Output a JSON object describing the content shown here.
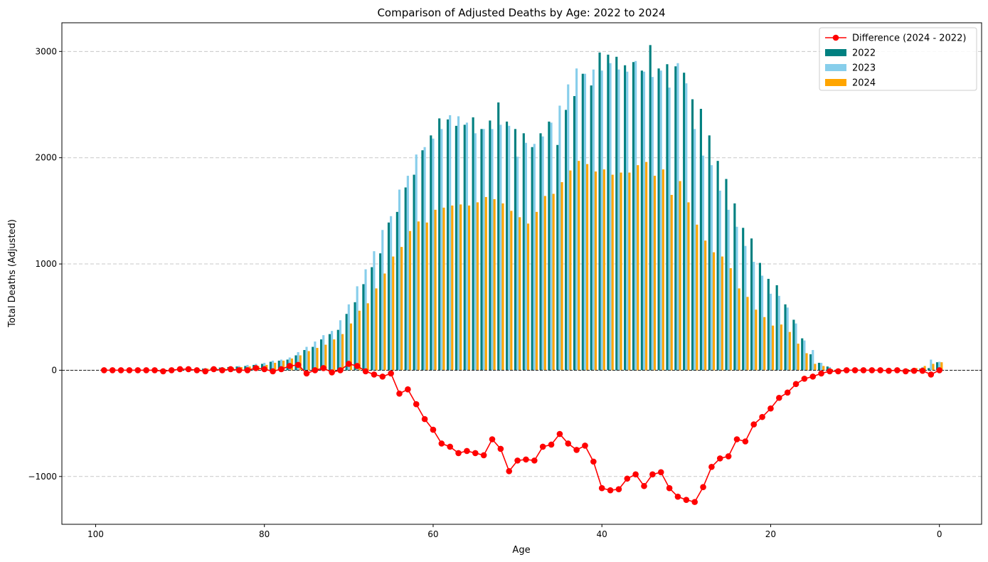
{
  "chart_data": {
    "type": "bar",
    "title": "Comparison of Adjusted Deaths by Age: 2022 to 2024",
    "xlabel": "Age",
    "ylabel": "Total Deaths (Adjusted)",
    "xlim": [
      104,
      -5
    ],
    "ylim": [
      -1450,
      3270
    ],
    "x_inverted": true,
    "xticks": [
      100,
      80,
      60,
      40,
      20,
      0
    ],
    "yticks": [
      -1000,
      0,
      1000,
      2000,
      3000
    ],
    "ytick_labels": [
      "−1000",
      "0",
      "1000",
      "2000",
      "3000"
    ],
    "grid": "y",
    "legend_position": "top-right",
    "categories": [
      0,
      1,
      2,
      3,
      4,
      5,
      6,
      7,
      8,
      9,
      10,
      11,
      12,
      13,
      14,
      15,
      16,
      17,
      18,
      19,
      20,
      21,
      22,
      23,
      24,
      25,
      26,
      27,
      28,
      29,
      30,
      31,
      32,
      33,
      34,
      35,
      36,
      37,
      38,
      39,
      40,
      41,
      42,
      43,
      44,
      45,
      46,
      47,
      48,
      49,
      50,
      51,
      52,
      53,
      54,
      55,
      56,
      57,
      58,
      59,
      60,
      61,
      62,
      63,
      64,
      65,
      66,
      67,
      68,
      69,
      70,
      71,
      72,
      73,
      74,
      75,
      76,
      77,
      78,
      79,
      80,
      81,
      82,
      83,
      84,
      85,
      86,
      87,
      88,
      89,
      90,
      91,
      92,
      93,
      94,
      95,
      96,
      97,
      98,
      99
    ],
    "series": [
      {
        "name": "2022",
        "kind": "bar",
        "color": "#008080",
        "values": [
          75,
          20,
          15,
          10,
          5,
          5,
          5,
          5,
          5,
          5,
          5,
          5,
          5,
          35,
          70,
          150,
          300,
          475,
          620,
          800,
          860,
          1010,
          1240,
          1340,
          1570,
          1800,
          1970,
          2210,
          2460,
          2550,
          2800,
          2860,
          2880,
          2840,
          3060,
          2820,
          2900,
          2870,
          2950,
          2970,
          2990,
          2680,
          2790,
          2580,
          2450,
          2120,
          2340,
          2230,
          2100,
          2230,
          2270,
          2340,
          2520,
          2350,
          2270,
          2380,
          2310,
          2300,
          2360,
          2370,
          2210,
          2070,
          1840,
          1720,
          1490,
          1390,
          1100,
          970,
          810,
          640,
          530,
          380,
          340,
          290,
          220,
          190,
          140,
          100,
          90,
          80,
          60,
          50,
          40,
          35,
          30,
          25,
          20,
          15,
          10,
          5,
          5,
          5,
          5,
          5,
          5,
          5,
          5,
          5,
          5,
          5
        ]
      },
      {
        "name": "2023",
        "kind": "bar",
        "color": "#87ceeb",
        "values": [
          80,
          100,
          30,
          20,
          10,
          5,
          5,
          5,
          5,
          5,
          5,
          5,
          10,
          30,
          70,
          190,
          280,
          440,
          590,
          700,
          720,
          890,
          1020,
          1170,
          1350,
          1510,
          1690,
          1930,
          2020,
          2270,
          2700,
          2890,
          2660,
          2820,
          2760,
          2810,
          2910,
          2810,
          2830,
          2890,
          2820,
          2830,
          2790,
          2840,
          2690,
          2490,
          2330,
          2200,
          2130,
          2140,
          2010,
          2300,
          2310,
          2270,
          2270,
          2230,
          2330,
          2390,
          2400,
          2270,
          2180,
          2100,
          2030,
          1830,
          1700,
          1450,
          1320,
          1120,
          950,
          790,
          620,
          470,
          370,
          330,
          270,
          220,
          170,
          120,
          100,
          90,
          70,
          60,
          50,
          40,
          30,
          30,
          25,
          20,
          10,
          5,
          5,
          5,
          5,
          5,
          5,
          5,
          5,
          5,
          5,
          5
        ]
      },
      {
        "name": "2024",
        "kind": "bar",
        "color": "#ffa500",
        "values": [
          75,
          60,
          40,
          20,
          10,
          5,
          5,
          5,
          5,
          5,
          5,
          5,
          5,
          10,
          40,
          60,
          160,
          250,
          360,
          430,
          420,
          500,
          570,
          690,
          770,
          960,
          1070,
          1110,
          1220,
          1370,
          1580,
          1780,
          1650,
          1890,
          1830,
          1960,
          1930,
          1860,
          1860,
          1840,
          1890,
          1870,
          1940,
          1970,
          1880,
          1770,
          1660,
          1640,
          1490,
          1380,
          1440,
          1500,
          1570,
          1610,
          1630,
          1580,
          1550,
          1560,
          1550,
          1530,
          1510,
          1390,
          1400,
          1310,
          1160,
          1070,
          910,
          770,
          630,
          560,
          440,
          340,
          290,
          240,
          210,
          180,
          140,
          110,
          90,
          70,
          50,
          40,
          35,
          30,
          25,
          20,
          20,
          15,
          10,
          5,
          5,
          5,
          5,
          5,
          5,
          5,
          5,
          5,
          5,
          5
        ]
      },
      {
        "name": "Difference (2024 - 2022)",
        "kind": "line",
        "color": "#ff0000",
        "values": [
          0,
          -40,
          -5,
          -5,
          -10,
          0,
          -5,
          0,
          0,
          0,
          0,
          0,
          -10,
          -10,
          -30,
          -60,
          -80,
          -130,
          -210,
          -260,
          -360,
          -440,
          -510,
          -670,
          -650,
          -810,
          -830,
          -910,
          -1100,
          -1240,
          -1220,
          -1190,
          -1110,
          -960,
          -980,
          -1090,
          -980,
          -1020,
          -1120,
          -1130,
          -1110,
          -860,
          -710,
          -750,
          -690,
          -600,
          -700,
          -720,
          -850,
          -840,
          -850,
          -950,
          -740,
          -650,
          -800,
          -780,
          -760,
          -780,
          -720,
          -690,
          -560,
          -460,
          -320,
          -180,
          -220,
          -30,
          -60,
          -40,
          -10,
          40,
          60,
          0,
          -20,
          20,
          0,
          -30,
          50,
          40,
          10,
          -10,
          10,
          20,
          0,
          0,
          10,
          0,
          10,
          -10,
          0,
          10,
          10,
          0,
          -10,
          0,
          0,
          0,
          0,
          0,
          0,
          0
        ]
      }
    ]
  }
}
